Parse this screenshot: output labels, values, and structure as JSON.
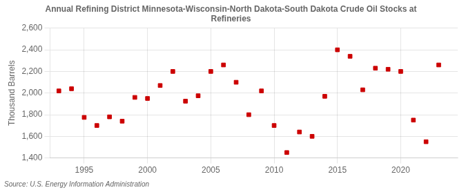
{
  "chart_data": {
    "type": "scatter",
    "title": "Annual Refining District Minnesota-Wisconsin-North Dakota-South Dakota Crude Oil Stocks at\nRefineries",
    "y_label": "Thousand Barrels",
    "annotations": [
      "Source: U.S. Energy Information Administration"
    ],
    "x": [
      1993,
      1994,
      1995,
      1996,
      1997,
      1998,
      1999,
      2000,
      2001,
      2002,
      2003,
      2004,
      2005,
      2006,
      2007,
      2008,
      2009,
      2010,
      2011,
      2012,
      2013,
      2014,
      2015,
      2016,
      2017,
      2018,
      2019,
      2020,
      2021,
      2022,
      2023
    ],
    "values": [
      2020,
      2040,
      1775,
      1700,
      1780,
      1740,
      1960,
      1950,
      2070,
      2200,
      1925,
      1975,
      2200,
      2260,
      2100,
      1800,
      2020,
      1700,
      1450,
      1640,
      1600,
      1970,
      2400,
      2340,
      2030,
      2230,
      2220,
      2200,
      1750,
      1550,
      2260
    ],
    "color": "#cc0000",
    "marker": "square",
    "xlim": [
      1992.3,
      2024.5
    ],
    "xticks": [
      1995,
      2000,
      2005,
      2010,
      2015,
      2020
    ],
    "ylim": [
      1400,
      2600
    ],
    "yticks": [
      {
        "value": 1400,
        "label": "1,400"
      },
      {
        "value": 1600,
        "label": "1,600"
      },
      {
        "value": 1800,
        "label": "1,800"
      },
      {
        "value": 2000,
        "label": "2,000"
      },
      {
        "value": 2200,
        "label": "2,200"
      },
      {
        "value": 2400,
        "label": "2,400"
      },
      {
        "value": 2600,
        "label": "2,600"
      }
    ],
    "grid": true
  }
}
